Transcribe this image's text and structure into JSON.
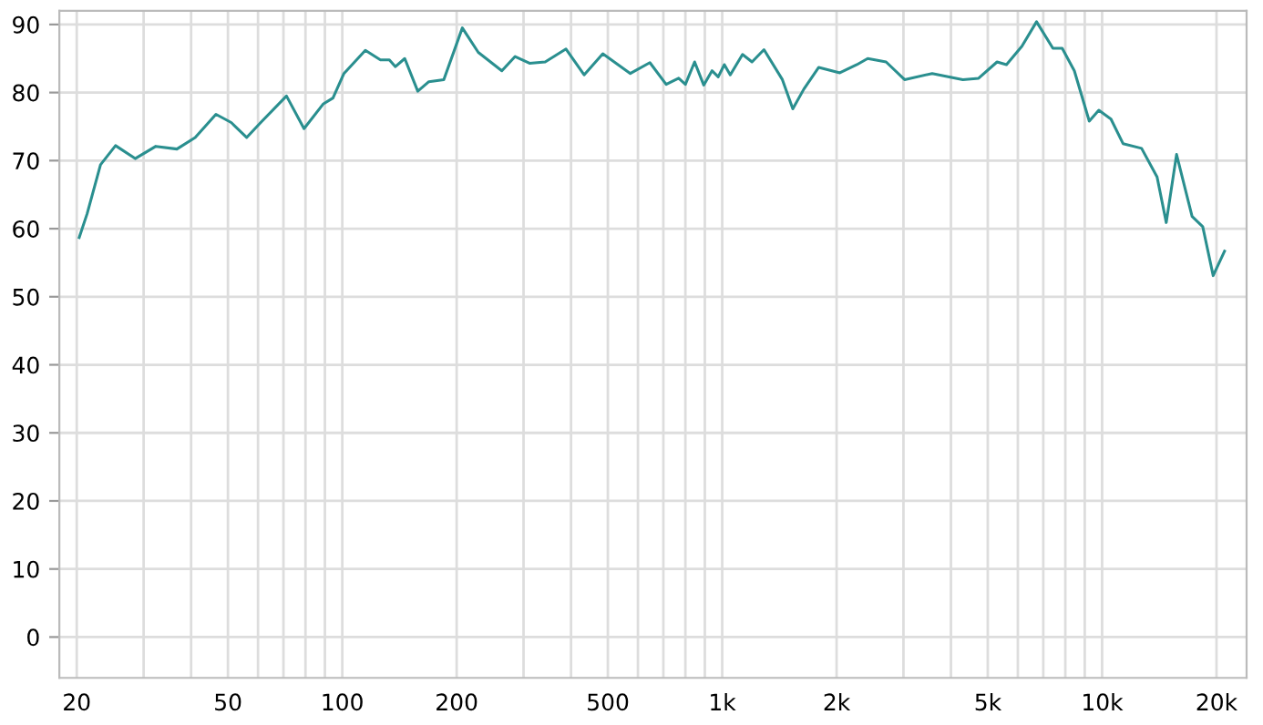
{
  "chart_data": {
    "type": "line",
    "log": "x",
    "grid": true,
    "marker": "none",
    "line_style": "solid",
    "xlim": [
      18,
      24000
    ],
    "ylim": [
      -6,
      92
    ],
    "xticks": [
      20,
      {
        "value": 30,
        "label": null
      },
      {
        "value": 40,
        "label": null
      },
      50,
      {
        "value": 60,
        "label": null
      },
      {
        "value": 70,
        "label": null
      },
      {
        "value": 80,
        "label": null
      },
      {
        "value": 90,
        "label": null
      },
      100,
      200,
      {
        "value": 300,
        "label": null
      },
      {
        "value": 400,
        "label": null
      },
      500,
      {
        "value": 600,
        "label": null
      },
      {
        "value": 700,
        "label": null
      },
      {
        "value": 800,
        "label": null
      },
      {
        "value": 900,
        "label": null
      },
      {
        "value": 1000,
        "label": "1k"
      },
      {
        "value": 2000,
        "label": "2k"
      },
      {
        "value": 3000,
        "label": null
      },
      {
        "value": 4000,
        "label": null
      },
      {
        "value": 5000,
        "label": "5k"
      },
      {
        "value": 6000,
        "label": null
      },
      {
        "value": 7000,
        "label": null
      },
      {
        "value": 8000,
        "label": null
      },
      {
        "value": 9000,
        "label": null
      },
      {
        "value": 10000,
        "label": "10k"
      },
      {
        "value": 20000,
        "label": "20k"
      }
    ],
    "yticks": [
      0,
      10,
      20,
      30,
      40,
      50,
      60,
      70,
      80,
      90
    ],
    "series": [
      {
        "color": "#2a8f8f",
        "x": [
          20.3,
          21.3,
          23.1,
          25.3,
          28.5,
          32.3,
          36.7,
          41,
          46.5,
          51,
          56,
          61,
          71.3,
          79.3,
          89,
          94.5,
          101,
          115,
          126,
          133,
          138,
          146,
          158,
          169,
          185,
          207,
          228,
          263,
          285,
          311,
          342,
          388,
          433,
          485,
          573,
          645,
          712,
          768,
          800,
          846,
          894,
          940,
          976,
          1013,
          1050,
          1131,
          1198,
          1288,
          1440,
          1534,
          1640,
          1795,
          2040,
          2262,
          2415,
          2700,
          3020,
          3570,
          4300,
          4730,
          5290,
          5600,
          6150,
          6720,
          7420,
          7850,
          8450,
          9250,
          9800,
          10550,
          11350,
          12700,
          13950,
          14750,
          15700,
          17250,
          18400,
          19600,
          21000
        ],
        "values": [
          58.7,
          62.2,
          69.4,
          72.2,
          70.3,
          72.1,
          71.7,
          73.4,
          76.8,
          75.6,
          73.4,
          75.6,
          79.5,
          74.7,
          78.3,
          79.2,
          82.8,
          86.2,
          84.8,
          84.8,
          83.8,
          85.0,
          80.2,
          81.6,
          81.9,
          89.5,
          85.9,
          83.2,
          85.3,
          84.3,
          84.5,
          86.4,
          82.6,
          85.7,
          82.8,
          84.4,
          81.2,
          82.1,
          81.2,
          84.5,
          81.1,
          83.2,
          82.3,
          84.1,
          82.6,
          85.6,
          84.5,
          86.3,
          81.9,
          77.6,
          80.5,
          83.7,
          82.9,
          84.1,
          85.0,
          84.5,
          81.9,
          82.8,
          81.9,
          82.1,
          84.5,
          84.1,
          86.8,
          90.4,
          86.5,
          86.5,
          83.2,
          75.8,
          77.4,
          76.1,
          72.5,
          71.8,
          67.6,
          60.9,
          70.9,
          61.8,
          60.3,
          53.1,
          56.7
        ]
      }
    ]
  }
}
